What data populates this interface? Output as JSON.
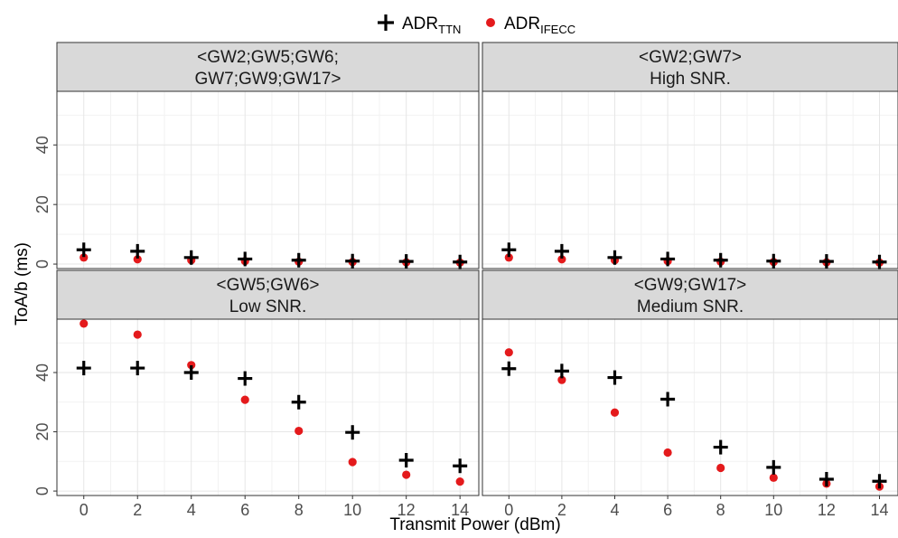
{
  "chart_data": {
    "type": "scatter",
    "xlabel": "Transmit Power  (dBm)",
    "ylabel": "ToA/b (ms)",
    "x_ticks": [
      0,
      2,
      4,
      6,
      8,
      10,
      12,
      14
    ],
    "x_range": [
      -1,
      14.7
    ],
    "y_ticks": [
      0,
      20,
      40
    ],
    "grid": true,
    "legend": {
      "position": "top",
      "items": [
        {
          "main": "ADR",
          "sub": "TTN",
          "marker": "plus",
          "color": "#000000"
        },
        {
          "main": "ADR",
          "sub": "IFECC",
          "marker": "circle",
          "color": "#e41a1c"
        }
      ]
    },
    "panels": [
      {
        "title": [
          "<GW2;GW5;GW6;",
          "GW7;GW9;GW17>"
        ],
        "ylim": [
          -1.5,
          58
        ],
        "series": [
          {
            "key": "ttn",
            "values": [
              4.8,
              4.3,
              2.2,
              1.7,
              1.3,
              1.0,
              0.9,
              0.7
            ]
          },
          {
            "key": "ifecc",
            "values": [
              2.2,
              1.6,
              1.3,
              1.0,
              0.8,
              0.7,
              0.6,
              0.5
            ]
          }
        ]
      },
      {
        "title": [
          "<GW2;GW7>",
          "High SNR."
        ],
        "ylim": [
          -1.5,
          58
        ],
        "series": [
          {
            "key": "ttn",
            "values": [
              4.8,
              4.3,
              2.2,
              1.7,
              1.3,
              1.0,
              0.9,
              0.7
            ]
          },
          {
            "key": "ifecc",
            "values": [
              2.2,
              1.6,
              1.3,
              1.0,
              0.8,
              0.7,
              0.6,
              0.5
            ]
          }
        ]
      },
      {
        "title": [
          "<GW5;GW6>",
          "Low SNR."
        ],
        "ylim": [
          -1.5,
          58
        ],
        "series": [
          {
            "key": "ttn",
            "values": [
              41.5,
              41.5,
              40.0,
              38.0,
              30.0,
              19.8,
              10.4,
              8.5
            ]
          },
          {
            "key": "ifecc",
            "values": [
              56.5,
              52.8,
              42.5,
              30.8,
              20.3,
              9.8,
              5.5,
              3.2
            ]
          }
        ]
      },
      {
        "title": [
          "<GW9;GW17>",
          "Medium SNR."
        ],
        "ylim": [
          -1.5,
          58
        ],
        "series": [
          {
            "key": "ttn",
            "values": [
              41.3,
              40.5,
              38.3,
              31.0,
              14.8,
              8.0,
              4.0,
              3.3
            ]
          },
          {
            "key": "ifecc",
            "values": [
              46.8,
              37.5,
              26.5,
              13.0,
              7.8,
              4.5,
              2.5,
              1.5
            ]
          }
        ]
      }
    ]
  }
}
